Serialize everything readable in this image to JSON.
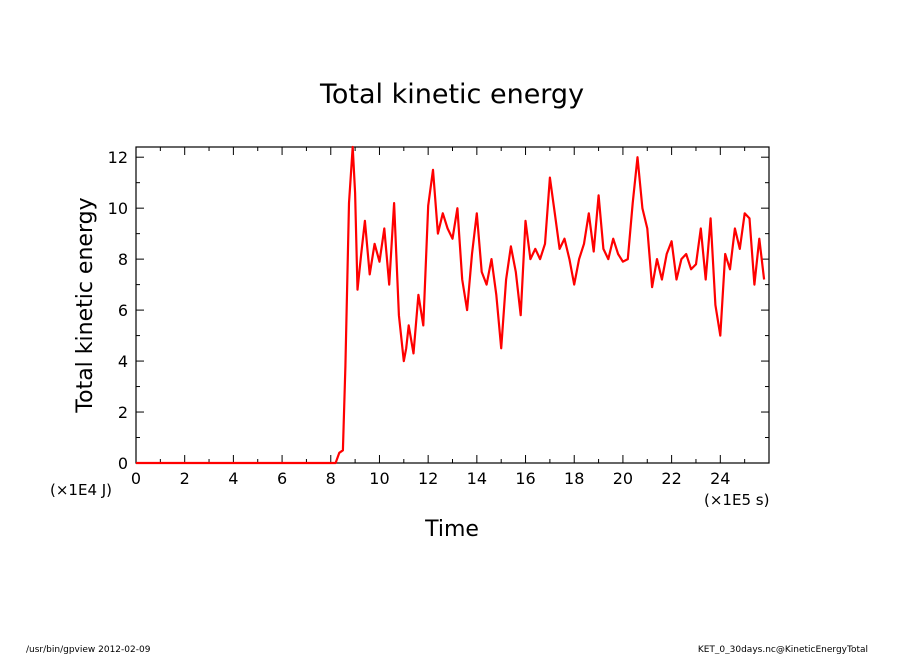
{
  "chart_data": {
    "type": "line",
    "title": "Total kinetic energy",
    "xlabel": "Time",
    "ylabel": "Total kinetic energy",
    "x_unit": "(×1E5 s)",
    "y_unit": "(×1E4 J)",
    "xlim": [
      0,
      26
    ],
    "ylim": [
      0,
      12.4
    ],
    "x_ticks": [
      "0",
      "2",
      "4",
      "6",
      "8",
      "10",
      "12",
      "14",
      "16",
      "18",
      "20",
      "22",
      "24"
    ],
    "y_ticks": [
      "0",
      "2",
      "4",
      "6",
      "8",
      "10",
      "12"
    ],
    "grid": false,
    "series": [
      {
        "color": "#ff0000",
        "x": [
          0,
          8.2,
          8.35,
          8.5,
          8.6,
          8.75,
          8.9,
          9.0,
          9.1,
          9.25,
          9.4,
          9.6,
          9.8,
          10.0,
          10.2,
          10.4,
          10.6,
          10.8,
          11.0,
          11.1,
          11.2,
          11.4,
          11.6,
          11.8,
          12.0,
          12.2,
          12.4,
          12.6,
          12.8,
          13.0,
          13.2,
          13.4,
          13.6,
          13.8,
          14.0,
          14.2,
          14.4,
          14.6,
          14.8,
          15.0,
          15.2,
          15.4,
          15.6,
          15.8,
          16.0,
          16.2,
          16.4,
          16.6,
          16.8,
          17.0,
          17.2,
          17.4,
          17.6,
          17.8,
          18.0,
          18.2,
          18.4,
          18.6,
          18.8,
          19.0,
          19.2,
          19.4,
          19.6,
          19.8,
          20.0,
          20.2,
          20.4,
          20.6,
          20.8,
          21.0,
          21.2,
          21.4,
          21.6,
          21.8,
          22.0,
          22.2,
          22.4,
          22.6,
          22.8,
          23.0,
          23.2,
          23.4,
          23.6,
          23.8,
          24.0,
          24.2,
          24.4,
          24.6,
          24.8,
          25.0,
          25.2,
          25.4,
          25.6,
          25.8
        ],
        "y": [
          0,
          0,
          0.4,
          0.5,
          3.8,
          10.2,
          12.4,
          10.6,
          6.8,
          8.2,
          9.5,
          7.4,
          8.6,
          7.9,
          9.2,
          7.0,
          10.2,
          5.8,
          4.0,
          4.5,
          5.4,
          4.3,
          6.6,
          5.4,
          10.1,
          11.5,
          9.0,
          9.8,
          9.2,
          8.8,
          10.0,
          7.2,
          6.0,
          8.2,
          9.8,
          7.5,
          7.0,
          8.0,
          6.6,
          4.5,
          7.2,
          8.5,
          7.5,
          5.8,
          9.5,
          8.0,
          8.4,
          8.0,
          8.6,
          11.2,
          9.8,
          8.4,
          8.8,
          8.0,
          7.0,
          8.0,
          8.6,
          9.8,
          8.3,
          10.5,
          8.4,
          8.0,
          8.8,
          8.2,
          7.9,
          8.0,
          10.2,
          12.0,
          10.0,
          9.2,
          6.9,
          8.0,
          7.2,
          8.2,
          8.7,
          7.2,
          8.0,
          8.2,
          7.6,
          7.8,
          9.2,
          7.2,
          9.6,
          6.2,
          5.0,
          8.2,
          7.6,
          9.2,
          8.4,
          9.8,
          9.6,
          7.0,
          8.8,
          7.2
        ]
      }
    ]
  },
  "footer": {
    "left": "/usr/bin/gpview   2012-02-09",
    "right": "KET_0_30days.nc@KineticEnergyTotal"
  }
}
